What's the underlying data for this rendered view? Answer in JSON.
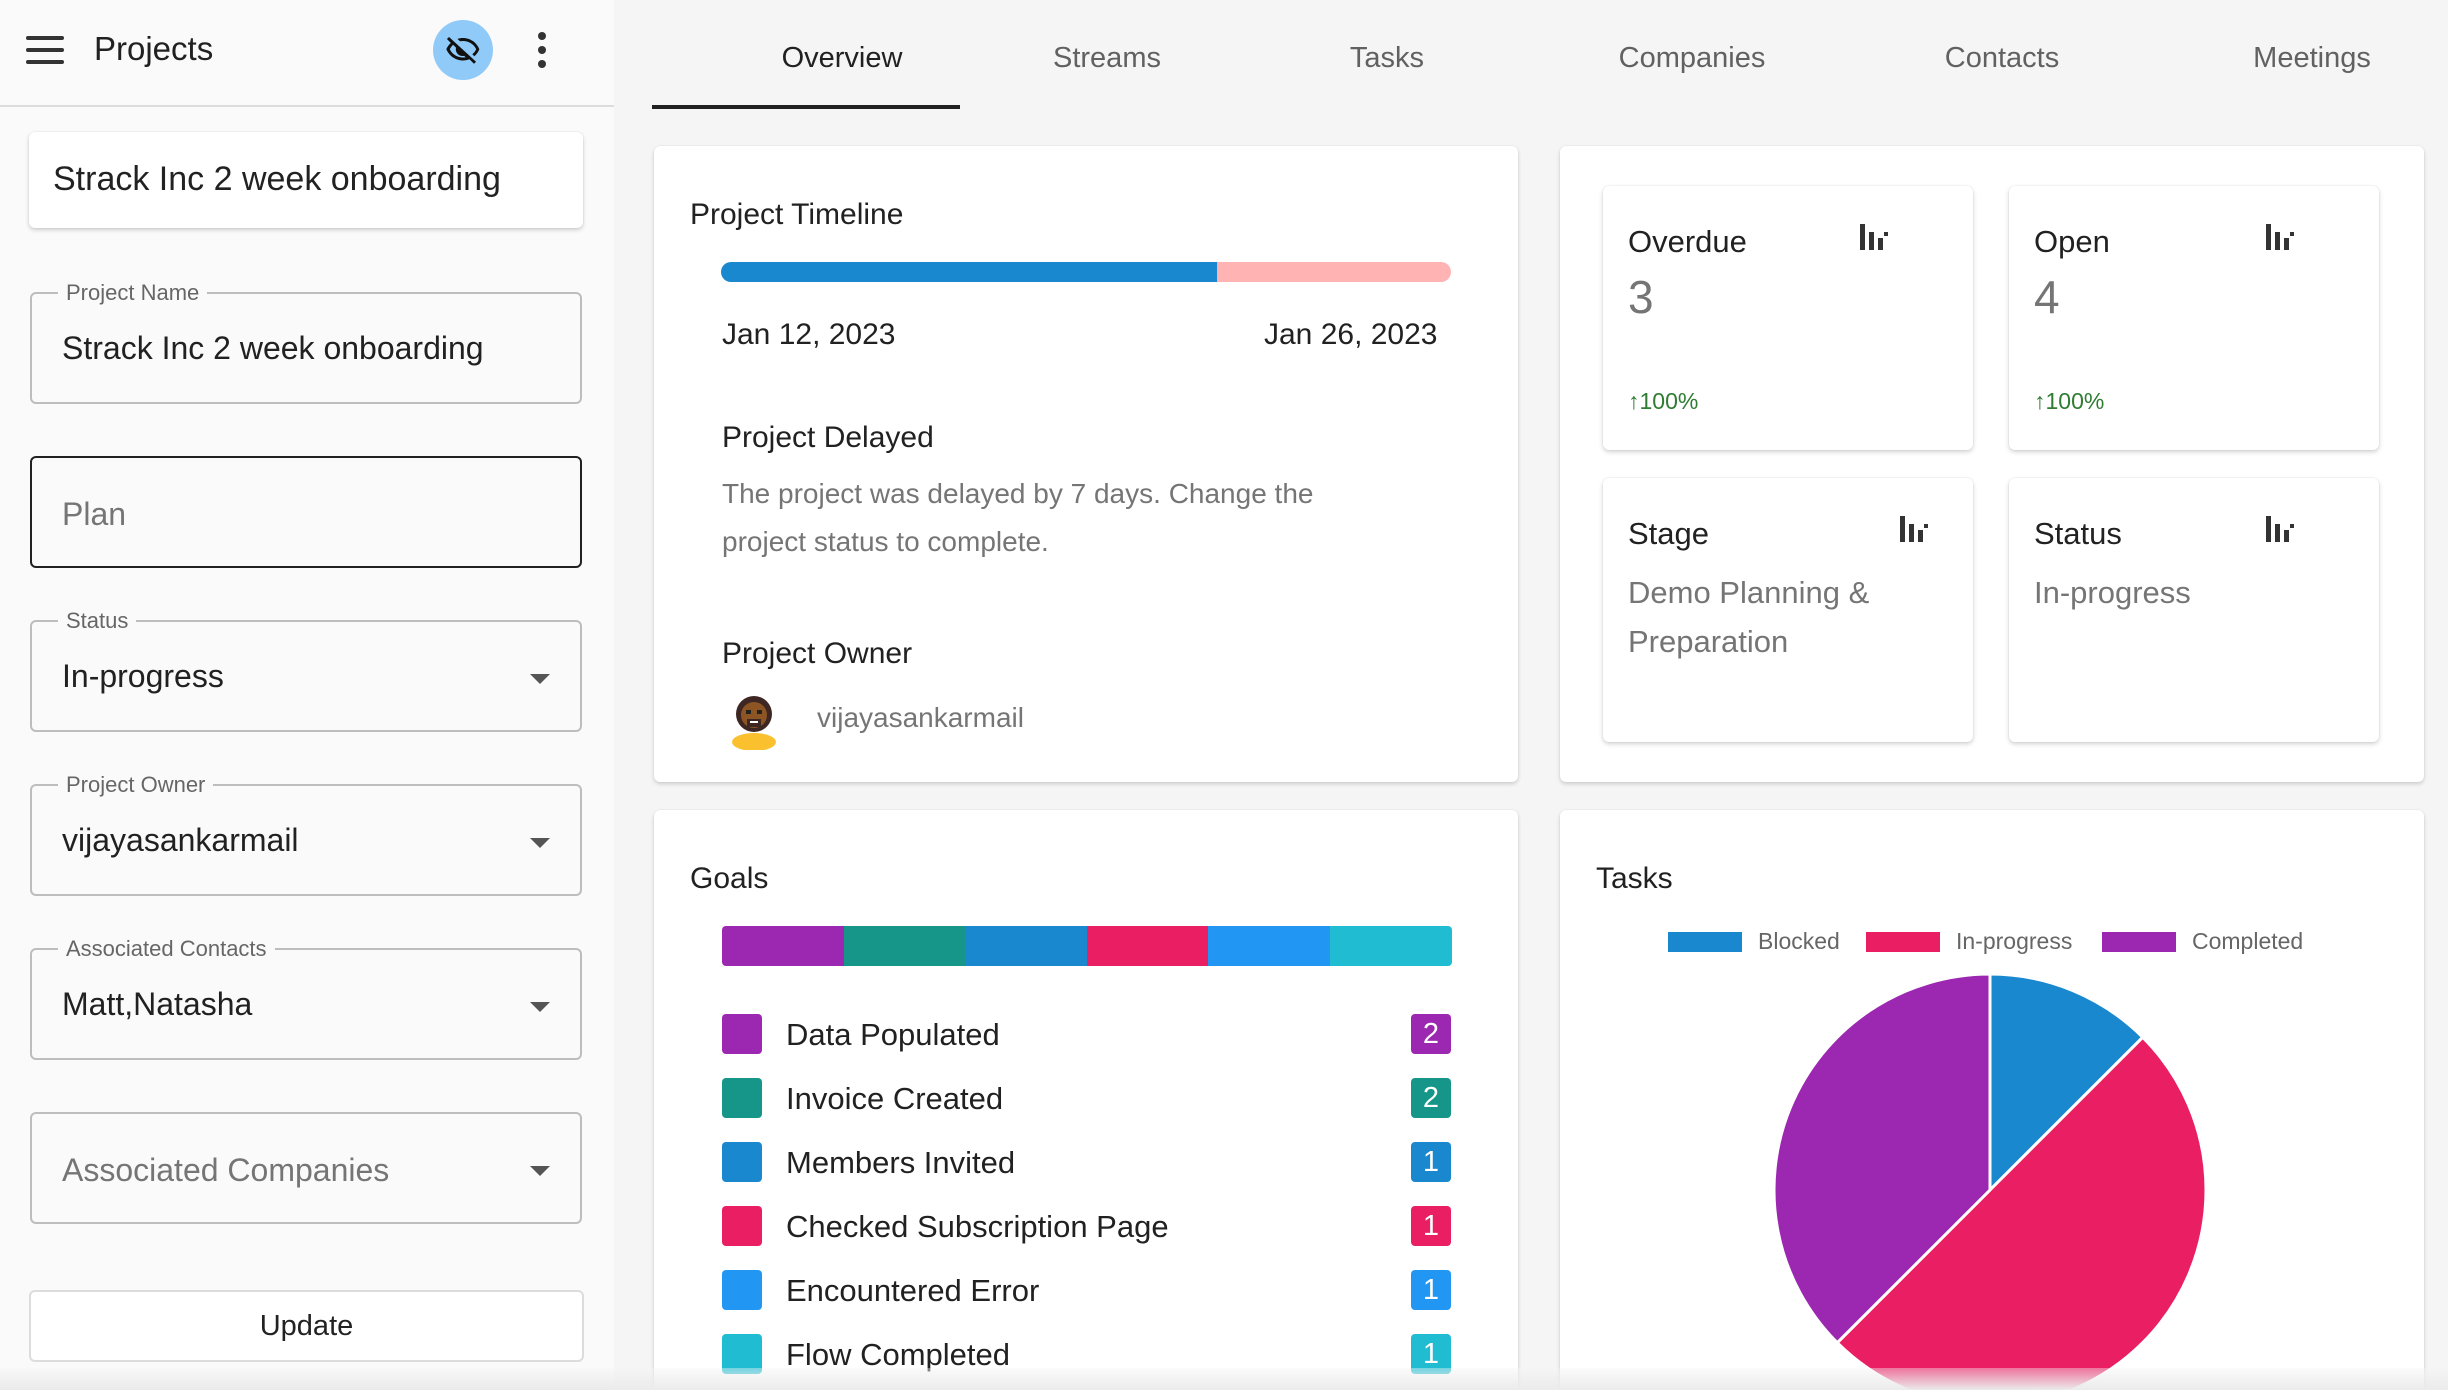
{
  "sidebar": {
    "title": "Projects",
    "project_heading": "Strack Inc 2 week onboarding",
    "fields": {
      "project_name": {
        "label": "Project Name",
        "value": "Strack Inc 2 week onboarding"
      },
      "plan": {
        "placeholder": "Plan"
      },
      "status": {
        "label": "Status",
        "value": "In-progress"
      },
      "project_owner": {
        "label": "Project Owner",
        "value": "vijayasankarmail"
      },
      "associated_contacts": {
        "label": "Associated Contacts",
        "value": "Matt,Natasha"
      },
      "associated_companies": {
        "placeholder": "Associated Companies"
      }
    },
    "update_label": "Update"
  },
  "tabs": [
    "Overview",
    "Streams",
    "Tasks",
    "Companies",
    "Contacts",
    "Meetings"
  ],
  "active_tab": "Overview",
  "timeline": {
    "title": "Project Timeline",
    "start_date": "Jan 12, 2023",
    "end_date": "Jan 26, 2023",
    "progress": 0.68,
    "delayed_title": "Project Delayed",
    "delayed_line1": "The project was delayed by 7 days. Change the",
    "delayed_line2": "project status to complete.",
    "owner_title": "Project Owner",
    "owner_name": "vijayasankarmail",
    "colors": {
      "done": "#1a88cf",
      "remaining": "#ffb3b3"
    }
  },
  "stats": {
    "overdue": {
      "title": "Overdue",
      "value": "3",
      "change": "100%",
      "icon": "bar-chart-icon"
    },
    "open": {
      "title": "Open",
      "value": "4",
      "change": "100%",
      "icon": "bar-chart-icon"
    },
    "stage": {
      "title": "Stage",
      "line1": "Demo Planning &",
      "line2": "Preparation",
      "icon": "bar-chart-icon"
    },
    "status": {
      "title": "Status",
      "value": "In-progress",
      "icon": "bar-chart-icon"
    }
  },
  "goals": {
    "title": "Goals",
    "items": [
      {
        "label": "Data Populated",
        "count": "2",
        "color": "#9c27b0"
      },
      {
        "label": "Invoice Created",
        "count": "2",
        "color": "#159688"
      },
      {
        "label": "Members Invited",
        "count": "1",
        "color": "#1a88cf"
      },
      {
        "label": "Checked Subscription Page",
        "count": "1",
        "color": "#e91e63"
      },
      {
        "label": "Encountered Error",
        "count": "1",
        "color": "#2196f3"
      },
      {
        "label": "Flow Completed",
        "count": "1",
        "color": "#1fbcd2"
      }
    ]
  },
  "tasks_chart": {
    "title": "Tasks",
    "chart_data": {
      "type": "pie",
      "categories": [
        "Blocked",
        "In-progress",
        "Completed"
      ],
      "values": [
        1,
        4,
        3
      ],
      "colors": [
        "#1a88cf",
        "#e91e63",
        "#9c27b0"
      ],
      "legend": "top"
    }
  }
}
